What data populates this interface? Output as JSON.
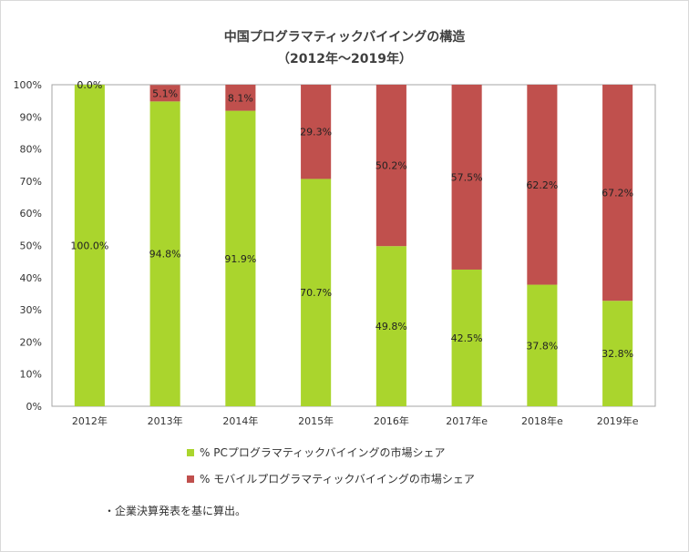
{
  "chart_data": {
    "type": "bar",
    "stacked": true,
    "percent": true,
    "title": "中国プログラマティックバイイングの構造",
    "subtitle": "（2012年～2019年）",
    "categories": [
      "2012年",
      "2013年",
      "2014年",
      "2015年",
      "2016年",
      "2017年e",
      "2018年e",
      "2019年e"
    ],
    "series": [
      {
        "name": "% PCプログラマティックバイイングの市場シェア",
        "color": "#aad52d",
        "values": [
          100.0,
          94.8,
          91.9,
          70.7,
          49.8,
          42.5,
          37.8,
          32.8
        ],
        "labels": [
          "100.0%",
          "94.8%",
          "91.9%",
          "70.7%",
          "49.8%",
          "42.5%",
          "37.8%",
          "32.8%"
        ]
      },
      {
        "name": "% モバイルプログラマティックバイイングの市場シェア",
        "color": "#c0504d",
        "values": [
          0.0,
          5.1,
          8.1,
          29.3,
          50.2,
          57.5,
          62.2,
          67.2
        ],
        "labels": [
          "0.0%",
          "5.1%",
          "8.1%",
          "29.3%",
          "50.2%",
          "57.5%",
          "62.2%",
          "67.2%"
        ]
      }
    ],
    "ylim": [
      0,
      100
    ],
    "yticks": [
      "0%",
      "10%",
      "20%",
      "30%",
      "40%",
      "50%",
      "60%",
      "70%",
      "80%",
      "90%",
      "100%"
    ],
    "grid": false,
    "legend": "bottom"
  },
  "note": "・企業決算発表を基に算出。"
}
